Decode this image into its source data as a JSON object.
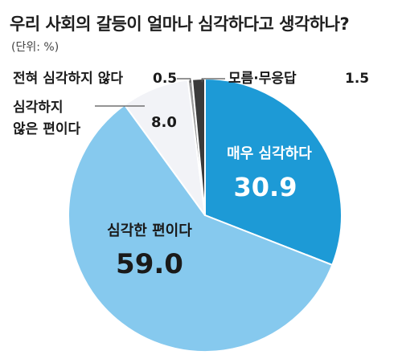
{
  "title": "우리 사회의 갈등이 얼마나 심각하다고 생각하나?",
  "unit": "(단위: %)",
  "colors": {
    "very_serious": "#1d9ad6",
    "serious": "#86c9ee",
    "not_serious": "#f2f3f7",
    "not_at_all": "#9a9a9a",
    "dont_know": "#3a3a3a",
    "outline": "#ffffff",
    "leader": "#555555"
  },
  "chart_data": {
    "type": "pie",
    "title": "우리 사회의 갈등이 얼마나 심각하다고 생각하나?",
    "unit": "(단위: %)",
    "slices": [
      {
        "label": "매우 심각하다",
        "value": 30.9,
        "value_text": "30.9"
      },
      {
        "label": "심각한 편이다",
        "value": 59.0,
        "value_text": "59.0"
      },
      {
        "label_lines": [
          "심각하지",
          "않은 편이다"
        ],
        "value": 8.0,
        "value_text": "8.0"
      },
      {
        "label": "전혀 심각하지 않다",
        "value": 0.5,
        "value_text": "0.5"
      },
      {
        "label": "모름·무응답",
        "value": 1.5,
        "value_text": "1.5"
      }
    ]
  }
}
